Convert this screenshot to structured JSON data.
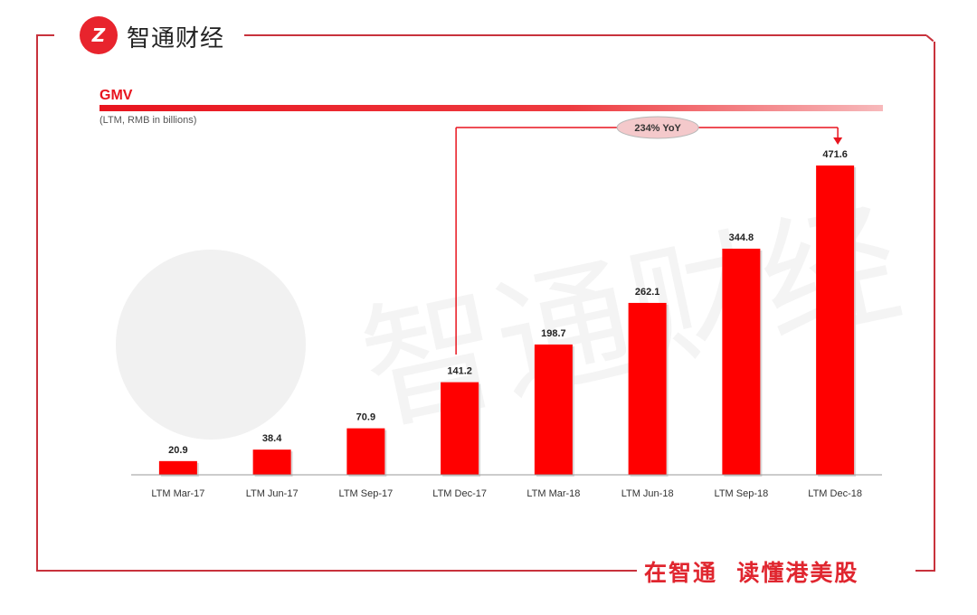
{
  "header": {
    "logo_text": "Z",
    "brand_name": "智通财经"
  },
  "footer": {
    "slogan": "在智通  读懂港美股"
  },
  "watermark": {
    "text": "智通财经"
  },
  "colors": {
    "accent": "#e8141e",
    "frame": "#c8323c",
    "bar": "#ff0000"
  },
  "chart_data": {
    "type": "bar",
    "title": "GMV",
    "subtitle": "(LTM, RMB in billions)",
    "categories": [
      "LTM Mar-17",
      "LTM Jun-17",
      "LTM Sep-17",
      "LTM Dec-17",
      "LTM Mar-18",
      "LTM Jun-18",
      "LTM Sep-18",
      "LTM Dec-18"
    ],
    "values": [
      20.9,
      38.4,
      70.9,
      141.2,
      198.7,
      262.1,
      344.8,
      471.6
    ],
    "value_labels": [
      "20.9",
      "38.4",
      "70.9",
      "141.2",
      "198.7",
      "262.1",
      "344.8",
      "471.6"
    ],
    "xlabel": "",
    "ylabel": "",
    "ylim": [
      0,
      471.6
    ],
    "grid": false,
    "annotation": {
      "text": "234% YoY",
      "from_category": "LTM Dec-17",
      "to_category": "LTM Dec-18"
    }
  }
}
